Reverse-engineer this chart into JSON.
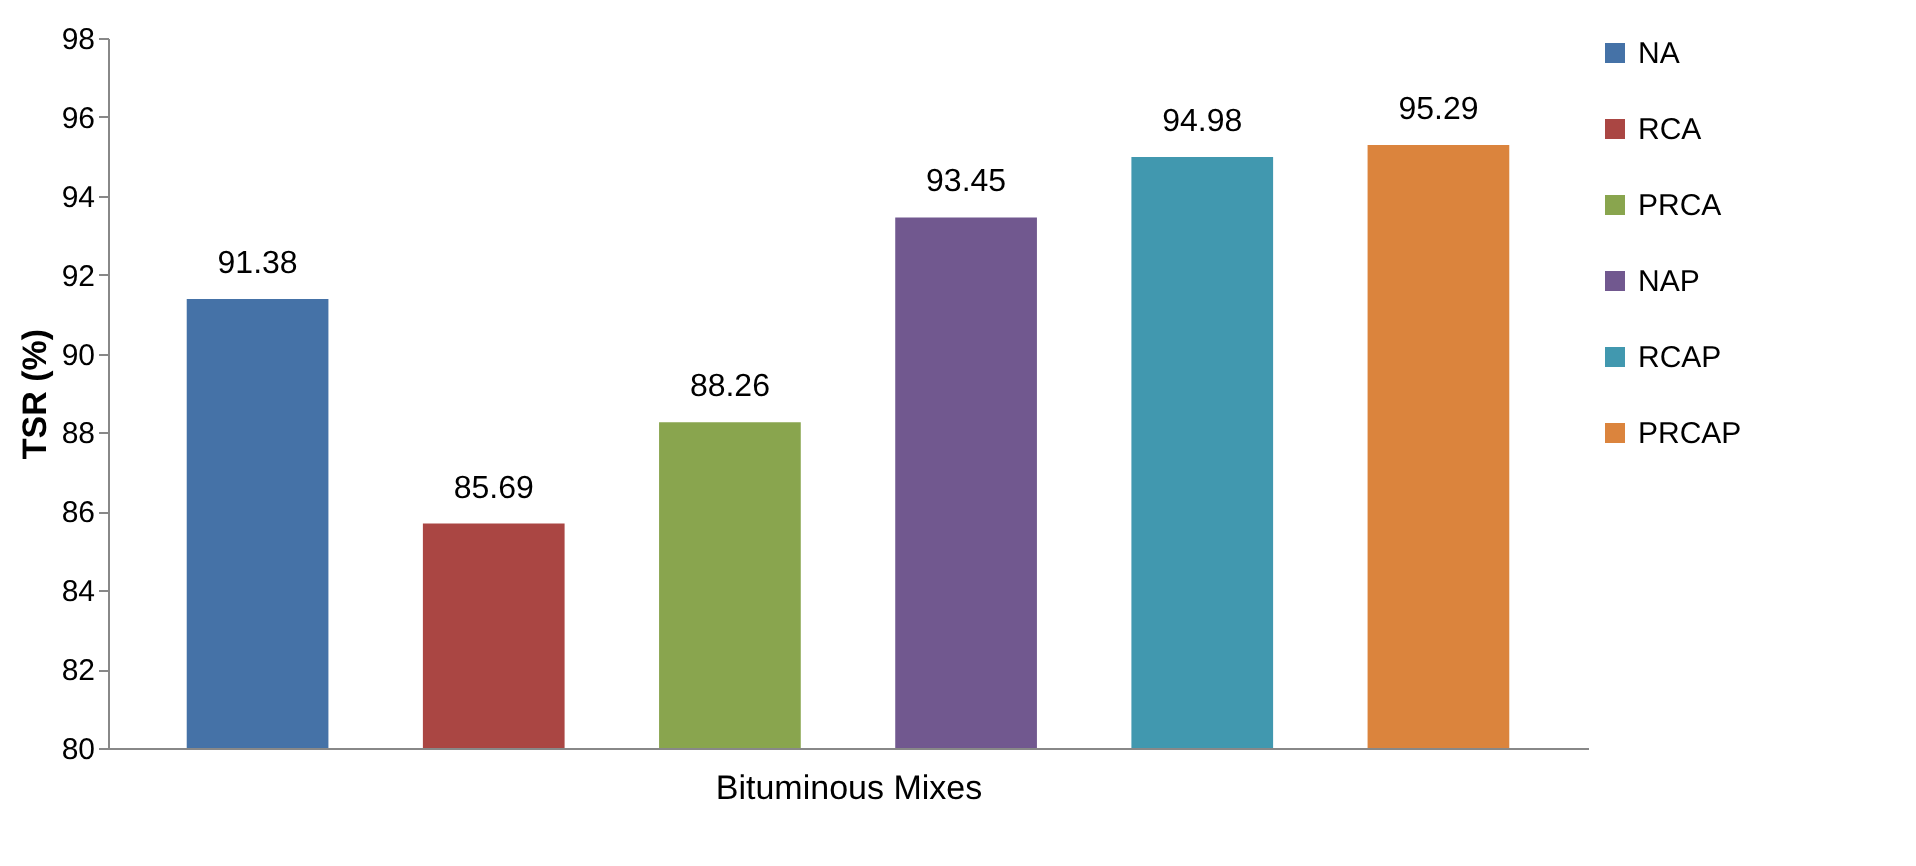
{
  "chart_data": {
    "type": "bar",
    "xlabel": "Bituminous Mixes",
    "ylabel": "TSR (%)",
    "categories": [
      null
    ],
    "series": [
      {
        "name": "NA",
        "color": "#4572a7",
        "values": [
          91.38
        ]
      },
      {
        "name": "RCA",
        "color": "#aa4643",
        "values": [
          85.69
        ]
      },
      {
        "name": "PRCA",
        "color": "#89a54e",
        "values": [
          88.26
        ]
      },
      {
        "name": "NAP",
        "color": "#71588f",
        "values": [
          93.45
        ]
      },
      {
        "name": "RCAP",
        "color": "#4198af",
        "values": [
          94.98
        ]
      },
      {
        "name": "PRCAP",
        "color": "#db843d",
        "values": [
          95.29
        ]
      }
    ],
    "ylim": [
      80,
      98
    ],
    "yticks": [
      80,
      82,
      84,
      86,
      88,
      90,
      92,
      94,
      96,
      98
    ],
    "data_labels": true,
    "legend": "right",
    "tick_labels": "y"
  }
}
